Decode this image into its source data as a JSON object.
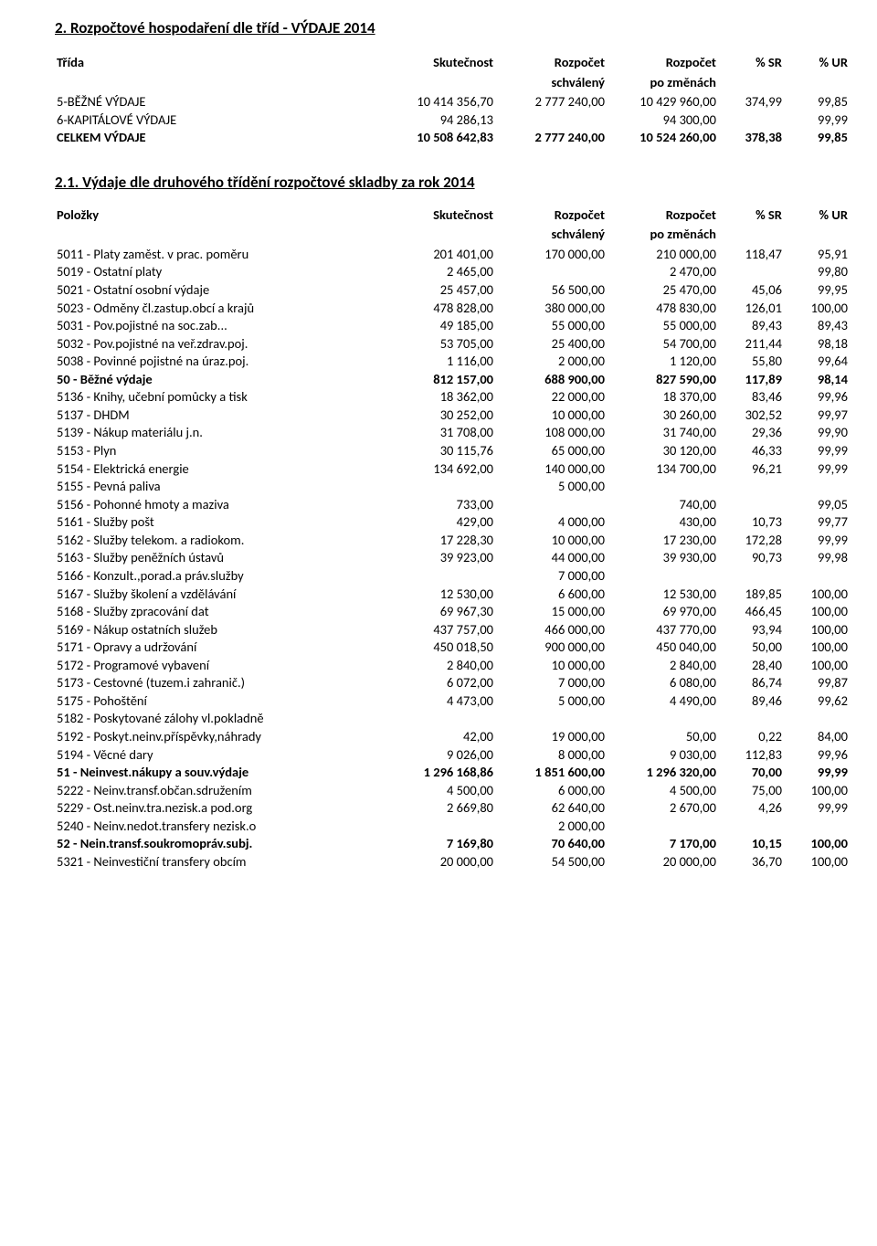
{
  "title1": "2. Rozpočtové hospodaření dle tříd - VÝDAJE 2014",
  "title2": "2.1. Výdaje dle druhového třídění rozpočtové skladby za rok 2014",
  "hdr": {
    "c1a": "Třída",
    "c1b": "Položky",
    "c2": "Skutečnost",
    "c3a": "Rozpočet",
    "c3b": "schválený",
    "c4a": "Rozpočet",
    "c4b": "po změnách",
    "c5": "% SR",
    "c6": "% UR"
  },
  "t1": [
    {
      "l": "5-BĚŽNÉ VÝDAJE",
      "a": "10 414 356,70",
      "b": "2 777 240,00",
      "c": "10 429 960,00",
      "d": "374,99",
      "e": "99,85"
    },
    {
      "l": "6-KAPITÁLOVÉ VÝDAJE",
      "a": "94 286,13",
      "b": "",
      "c": "94 300,00",
      "d": "",
      "e": "99,99"
    },
    {
      "l": "CELKEM VÝDAJE",
      "a": "10 508 642,83",
      "b": "2 777 240,00",
      "c": "10 524 260,00",
      "d": "378,38",
      "e": "99,85",
      "bold": true
    }
  ],
  "t2": [
    {
      "l": "5011 - Platy zaměst. v prac. poměru",
      "a": "201 401,00",
      "b": "170 000,00",
      "c": "210 000,00",
      "d": "118,47",
      "e": "95,91"
    },
    {
      "l": "5019 - Ostatní platy",
      "a": "2 465,00",
      "b": "",
      "c": "2 470,00",
      "d": "",
      "e": "99,80"
    },
    {
      "l": "5021 - Ostatní osobní výdaje",
      "a": "25 457,00",
      "b": "56 500,00",
      "c": "25 470,00",
      "d": "45,06",
      "e": "99,95"
    },
    {
      "l": "5023 - Odměny čl.zastup.obcí a krajů",
      "a": "478 828,00",
      "b": "380 000,00",
      "c": "478 830,00",
      "d": "126,01",
      "e": "100,00"
    },
    {
      "l": "5031 - Pov.pojistné na soc.zab...",
      "a": "49 185,00",
      "b": "55 000,00",
      "c": "55 000,00",
      "d": "89,43",
      "e": "89,43"
    },
    {
      "l": "5032 - Pov.pojistné na veř.zdrav.poj.",
      "a": "53 705,00",
      "b": "25 400,00",
      "c": "54 700,00",
      "d": "211,44",
      "e": "98,18"
    },
    {
      "l": "5038 - Povinné pojistné na úraz.poj.",
      "a": "1 116,00",
      "b": "2 000,00",
      "c": "1 120,00",
      "d": "55,80",
      "e": "99,64"
    },
    {
      "l": " 50 - Běžné výdaje",
      "a": "812 157,00",
      "b": "688 900,00",
      "c": "827 590,00",
      "d": "117,89",
      "e": "98,14",
      "bold": true
    },
    {
      "l": "5136 - Knihy, učební pomůcky a tisk",
      "a": "18 362,00",
      "b": "22 000,00",
      "c": "18 370,00",
      "d": "83,46",
      "e": "99,96"
    },
    {
      "l": "5137 - DHDM",
      "a": "30 252,00",
      "b": "10 000,00",
      "c": "30 260,00",
      "d": "302,52",
      "e": "99,97"
    },
    {
      "l": "5139 - Nákup materiálu j.n.",
      "a": "31 708,00",
      "b": "108 000,00",
      "c": "31 740,00",
      "d": "29,36",
      "e": "99,90"
    },
    {
      "l": "5153 - Plyn",
      "a": "30 115,76",
      "b": "65 000,00",
      "c": "30 120,00",
      "d": "46,33",
      "e": "99,99"
    },
    {
      "l": "5154 - Elektrická energie",
      "a": "134 692,00",
      "b": "140 000,00",
      "c": "134 700,00",
      "d": "96,21",
      "e": "99,99"
    },
    {
      "l": "5155 - Pevná paliva",
      "a": "",
      "b": "5 000,00",
      "c": "",
      "d": "",
      "e": ""
    },
    {
      "l": "5156 - Pohonné hmoty a maziva",
      "a": "733,00",
      "b": "",
      "c": "740,00",
      "d": "",
      "e": "99,05"
    },
    {
      "l": "5161 - Služby pošt",
      "a": "429,00",
      "b": "4 000,00",
      "c": "430,00",
      "d": "10,73",
      "e": "99,77"
    },
    {
      "l": "5162 - Služby telekom. a radiokom.",
      "a": "17 228,30",
      "b": "10 000,00",
      "c": "17 230,00",
      "d": "172,28",
      "e": "99,99"
    },
    {
      "l": "5163 - Služby peněžních ústavů",
      "a": "39 923,00",
      "b": "44 000,00",
      "c": "39 930,00",
      "d": "90,73",
      "e": "99,98"
    },
    {
      "l": "5166 - Konzult.,porad.a práv.služby",
      "a": "",
      "b": "7 000,00",
      "c": "",
      "d": "",
      "e": ""
    },
    {
      "l": "5167 - Služby školení a vzdělávání",
      "a": "12 530,00",
      "b": "6 600,00",
      "c": "12 530,00",
      "d": "189,85",
      "e": "100,00"
    },
    {
      "l": "5168 - Služby zpracování dat",
      "a": "69 967,30",
      "b": "15 000,00",
      "c": "69 970,00",
      "d": "466,45",
      "e": "100,00"
    },
    {
      "l": "5169 - Nákup ostatních služeb",
      "a": "437 757,00",
      "b": "466 000,00",
      "c": "437 770,00",
      "d": "93,94",
      "e": "100,00"
    },
    {
      "l": "5171 - Opravy a udržování",
      "a": "450 018,50",
      "b": "900 000,00",
      "c": "450 040,00",
      "d": "50,00",
      "e": "100,00"
    },
    {
      "l": "5172 - Programové vybavení",
      "a": "2 840,00",
      "b": "10 000,00",
      "c": "2 840,00",
      "d": "28,40",
      "e": "100,00"
    },
    {
      "l": "5173 - Cestovné (tuzem.i zahranič.)",
      "a": "6 072,00",
      "b": "7 000,00",
      "c": "6 080,00",
      "d": "86,74",
      "e": "99,87"
    },
    {
      "l": "5175 - Pohoštění",
      "a": "4 473,00",
      "b": "5 000,00",
      "c": "4 490,00",
      "d": "89,46",
      "e": "99,62"
    },
    {
      "l": "5182 - Poskytované zálohy vl.pokladně",
      "a": "",
      "b": "",
      "c": "",
      "d": "",
      "e": ""
    },
    {
      "l": "5192 - Poskyt.neinv.příspěvky,náhrady",
      "a": "42,00",
      "b": "19 000,00",
      "c": "50,00",
      "d": "0,22",
      "e": "84,00"
    },
    {
      "l": "5194 - Věcné dary",
      "a": "9 026,00",
      "b": "8 000,00",
      "c": "9 030,00",
      "d": "112,83",
      "e": "99,96"
    },
    {
      "l": " 51 - Neinvest.nákupy a souv.výdaje",
      "a": "1 296 168,86",
      "b": "1 851 600,00",
      "c": "1 296 320,00",
      "d": "70,00",
      "e": "99,99",
      "bold": true
    },
    {
      "l": "5222 - Neinv.transf.občan.sdružením",
      "a": "4 500,00",
      "b": "6 000,00",
      "c": "4 500,00",
      "d": "75,00",
      "e": "100,00"
    },
    {
      "l": "5229 - Ost.neinv.tra.nezisk.a pod.org",
      "a": "2 669,80",
      "b": "62 640,00",
      "c": "2 670,00",
      "d": "4,26",
      "e": "99,99"
    },
    {
      "l": "5240 - Neinv.nedot.transfery nezisk.o",
      "a": "",
      "b": "2 000,00",
      "c": "",
      "d": "",
      "e": ""
    },
    {
      "l": " 52 - Nein.transf.soukromopráv.subj.",
      "a": "7 169,80",
      "b": "70 640,00",
      "c": "7 170,00",
      "d": "10,15",
      "e": "100,00",
      "bold": true
    },
    {
      "l": "5321 - Neinvestiční transfery obcím",
      "a": "20 000,00",
      "b": "54 500,00",
      "c": "20 000,00",
      "d": "36,70",
      "e": "100,00"
    }
  ]
}
